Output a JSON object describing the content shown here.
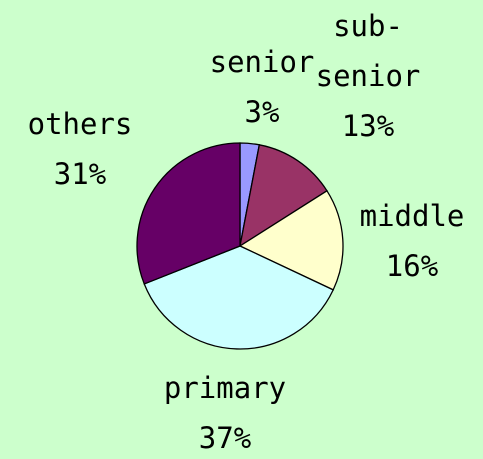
{
  "chart_data": {
    "type": "pie",
    "categories": [
      "senior",
      "sub-senior",
      "middle",
      "primary",
      "others"
    ],
    "values": [
      3,
      13,
      16,
      37,
      31
    ],
    "value_labels": [
      "3%",
      "13%",
      "16%",
      "37%",
      "31%"
    ],
    "colors": [
      "#9999ff",
      "#993366",
      "#ffffcc",
      "#ccffff",
      "#660066"
    ]
  }
}
